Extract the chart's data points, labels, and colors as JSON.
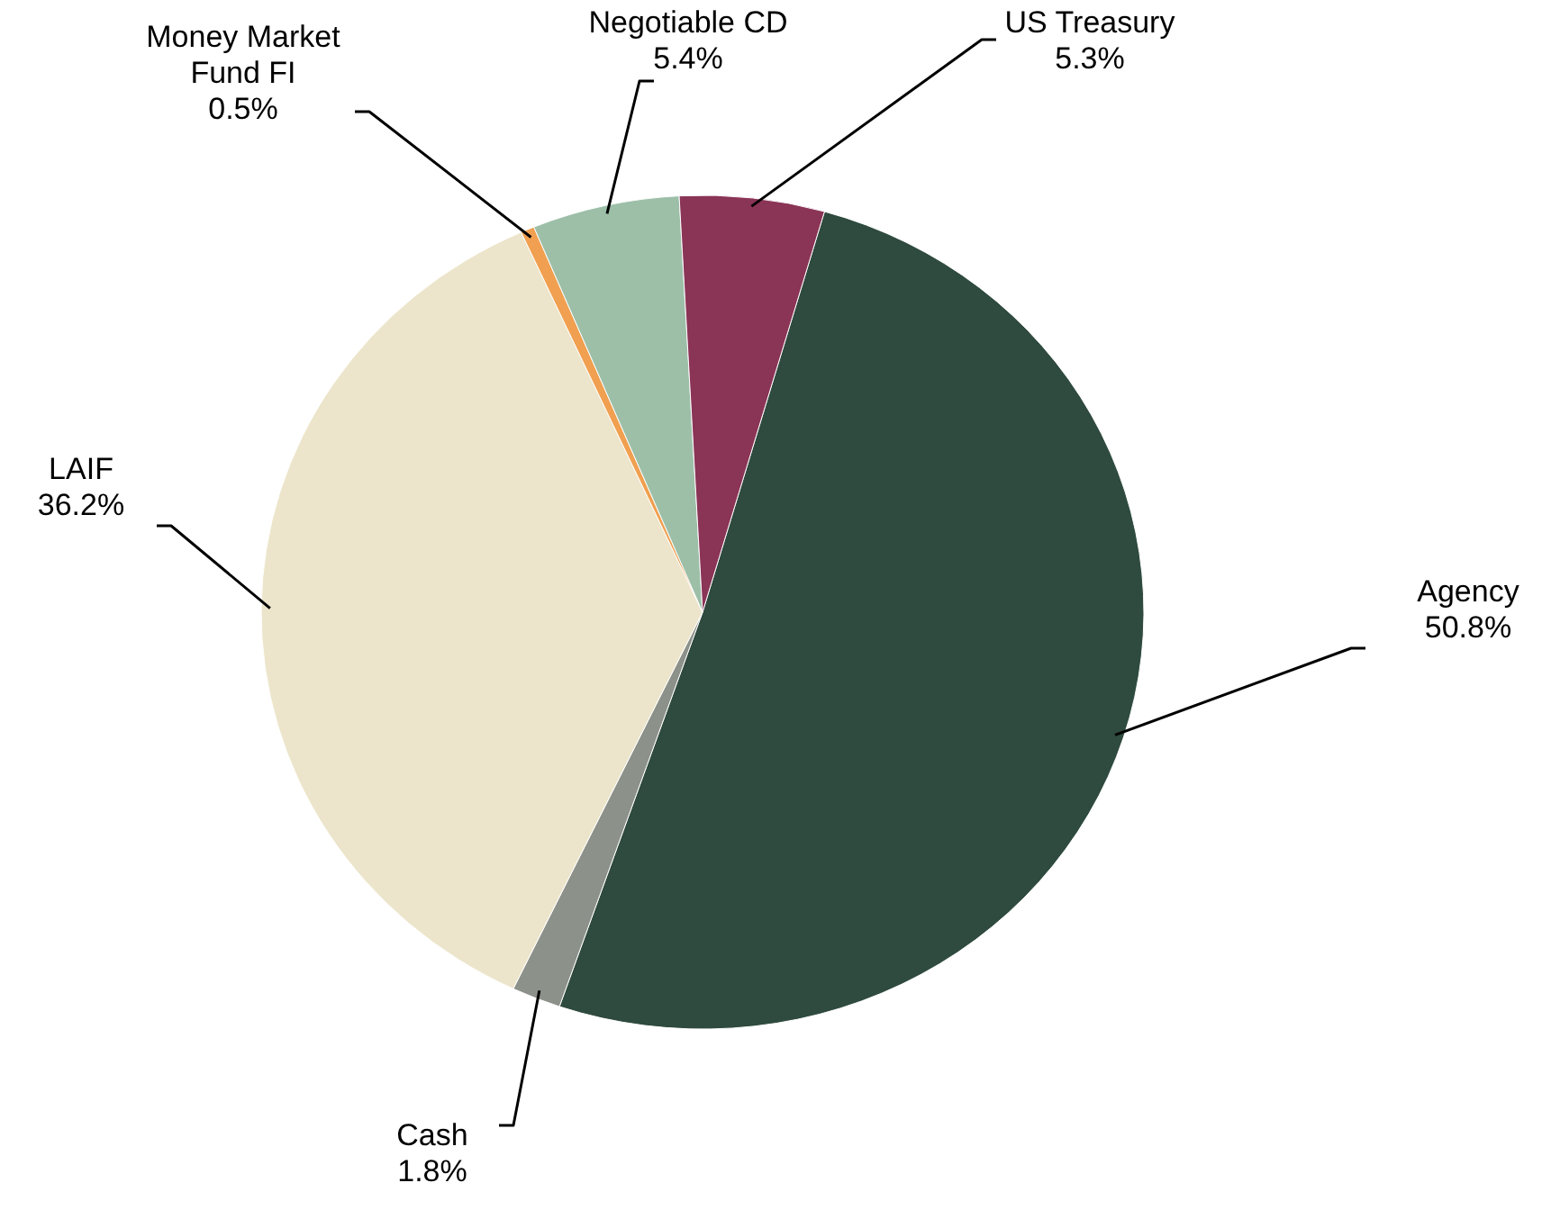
{
  "chart_data": {
    "type": "pie",
    "categories": [
      "Agency",
      "Cash",
      "LAIF",
      "Money Market\nFund FI",
      "Negotiable CD",
      "US Treasury"
    ],
    "values": [
      50.8,
      1.8,
      36.2,
      0.5,
      5.4,
      5.3
    ],
    "value_labels": [
      "50.8%",
      "1.8%",
      "36.2%",
      "0.5%",
      "5.4%",
      "5.3%"
    ],
    "colors": [
      "#2f4a3e",
      "#8c918a",
      "#ece5cb",
      "#f0a050",
      "#9dbfa8",
      "#8a3456"
    ]
  }
}
